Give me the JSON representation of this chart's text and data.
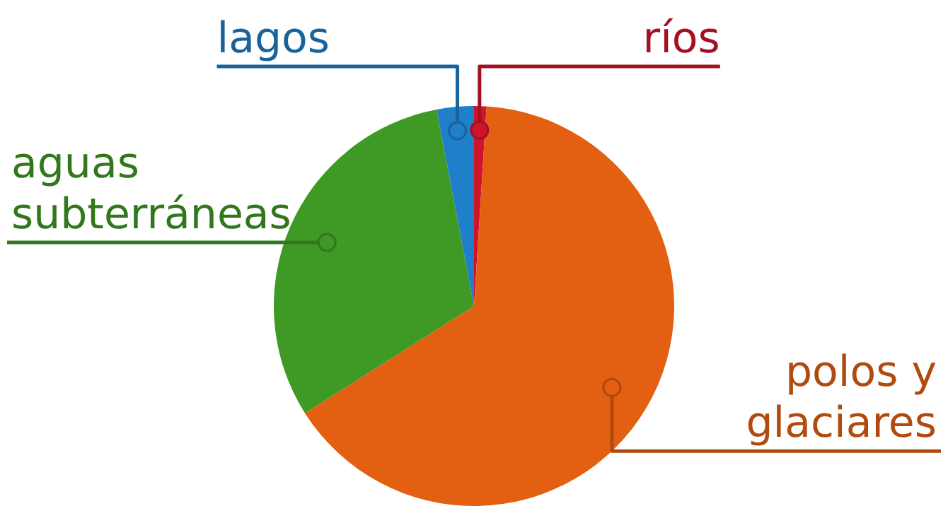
{
  "chart_data": {
    "type": "pie",
    "categories": [
      "ríos",
      "polos y glaciares",
      "aguas subterráneas",
      "lagos"
    ],
    "values": [
      1,
      65,
      31,
      3
    ],
    "colors": [
      "#d0142c",
      "#e35f12",
      "#3f9a25",
      "#1f7fc8"
    ],
    "legend": false
  }
}
